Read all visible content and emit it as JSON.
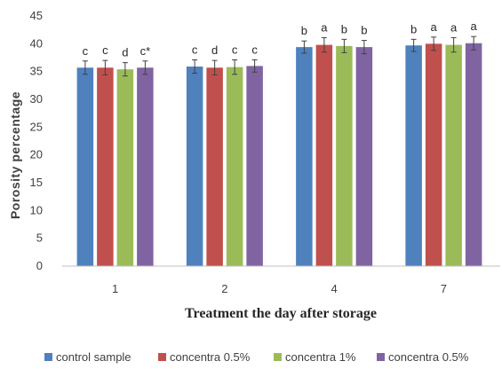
{
  "chart_data": {
    "type": "bar",
    "xlabel": "Treatment the day after storage",
    "ylabel": "Porosity percentage",
    "ylim": [
      0,
      45
    ],
    "yticks": [
      0,
      5,
      10,
      15,
      20,
      25,
      30,
      35,
      40,
      45
    ],
    "grid": false,
    "legend_position": "bottom",
    "categories": [
      "1",
      "2",
      "4",
      "7"
    ],
    "series": [
      {
        "name": "control sample",
        "color": "#4F81BD",
        "values": [
          35.7,
          35.9,
          39.4,
          39.7
        ],
        "errors": [
          1.2,
          1.2,
          1.1,
          1.1
        ],
        "labels": [
          "c",
          "c",
          "b",
          "b"
        ]
      },
      {
        "name": "concentra 0.5%",
        "color": "#C0504D",
        "values": [
          35.7,
          35.7,
          39.8,
          40.0
        ],
        "errors": [
          1.3,
          1.3,
          1.3,
          1.2
        ],
        "labels": [
          "c",
          "d",
          "a",
          "a"
        ]
      },
      {
        "name": "concentra 1%",
        "color": "#9BBB59",
        "values": [
          35.4,
          35.8,
          39.6,
          39.8
        ],
        "errors": [
          1.2,
          1.3,
          1.2,
          1.3
        ],
        "labels": [
          "d",
          "c",
          "b",
          "a"
        ]
      },
      {
        "name": "concentra 0.5%",
        "color": "#8064A2",
        "values": [
          35.7,
          36.0,
          39.4,
          40.1
        ],
        "errors": [
          1.2,
          1.1,
          1.2,
          1.2
        ],
        "labels": [
          "c*",
          "c",
          "b",
          "a"
        ]
      }
    ]
  }
}
